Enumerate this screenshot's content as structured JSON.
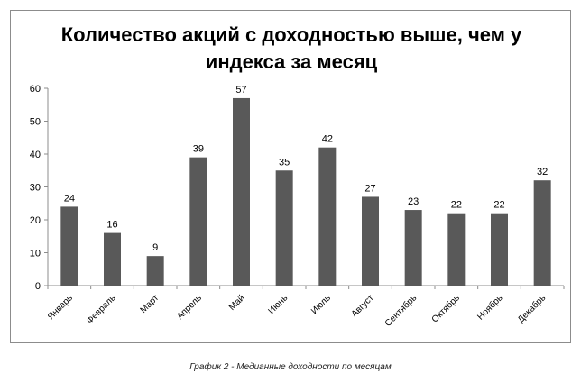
{
  "chart_data": {
    "type": "bar",
    "title": "Количество акций с доходностью выше, чем у индекса за месяц",
    "categories": [
      "Январь",
      "Февраль",
      "Март",
      "Апрель",
      "Май",
      "Июнь",
      "Июль",
      "Август",
      "Сентябрь",
      "Октябрь",
      "Ноябрь",
      "Декабрь"
    ],
    "values": [
      24,
      16,
      9,
      39,
      57,
      35,
      42,
      27,
      23,
      22,
      22,
      32
    ],
    "ylim": [
      0,
      60
    ],
    "yticks": [
      0,
      10,
      20,
      30,
      40,
      50,
      60
    ],
    "grid": false,
    "legend": "none",
    "bar_color": "#595959"
  },
  "caption": "График 2 - Медианные доходности по месяцам"
}
